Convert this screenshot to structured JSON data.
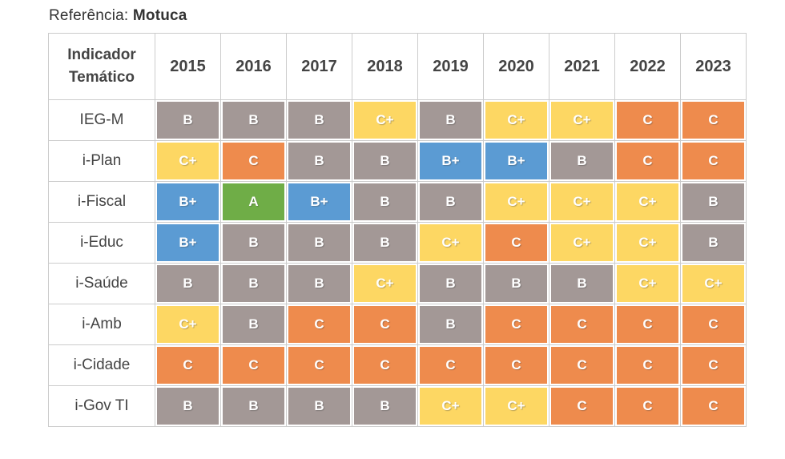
{
  "reference": {
    "label": "Referência:",
    "value": "Motuca"
  },
  "chart_data": {
    "type": "heatmap",
    "title": "Referência: Motuca",
    "corner_header_lines": [
      "Indicador",
      "Temático"
    ],
    "columns": [
      "2015",
      "2016",
      "2017",
      "2018",
      "2019",
      "2020",
      "2021",
      "2022",
      "2023"
    ],
    "rows": [
      {
        "indicator": "IEG-M",
        "grades": [
          "B",
          "B",
          "B",
          "C+",
          "B",
          "C+",
          "C+",
          "C",
          "C"
        ]
      },
      {
        "indicator": "i-Plan",
        "grades": [
          "C+",
          "C",
          "B",
          "B",
          "B+",
          "B+",
          "B",
          "C",
          "C"
        ]
      },
      {
        "indicator": "i-Fiscal",
        "grades": [
          "B+",
          "A",
          "B+",
          "B",
          "B",
          "C+",
          "C+",
          "C+",
          "B"
        ]
      },
      {
        "indicator": "i-Educ",
        "grades": [
          "B+",
          "B",
          "B",
          "B",
          "C+",
          "C",
          "C+",
          "C+",
          "B"
        ]
      },
      {
        "indicator": "i-Saúde",
        "grades": [
          "B",
          "B",
          "B",
          "C+",
          "B",
          "B",
          "B",
          "C+",
          "C+"
        ]
      },
      {
        "indicator": "i-Amb",
        "grades": [
          "C+",
          "B",
          "C",
          "C",
          "B",
          "C",
          "C",
          "C",
          "C"
        ]
      },
      {
        "indicator": "i-Cidade",
        "grades": [
          "C",
          "C",
          "C",
          "C",
          "C",
          "C",
          "C",
          "C",
          "C"
        ]
      },
      {
        "indicator": "i-Gov TI",
        "grades": [
          "B",
          "B",
          "B",
          "B",
          "C+",
          "C+",
          "C",
          "C",
          "C"
        ]
      }
    ],
    "grade_colors": {
      "A": "#6fad47",
      "B+": "#5b9bd3",
      "B": "#a39896",
      "C+": "#fdd763",
      "C": "#ee8b4d"
    },
    "cell_text_color": "#ffffff",
    "grid_border_color": "#cccccc",
    "legend_position": "none",
    "grid": true
  }
}
